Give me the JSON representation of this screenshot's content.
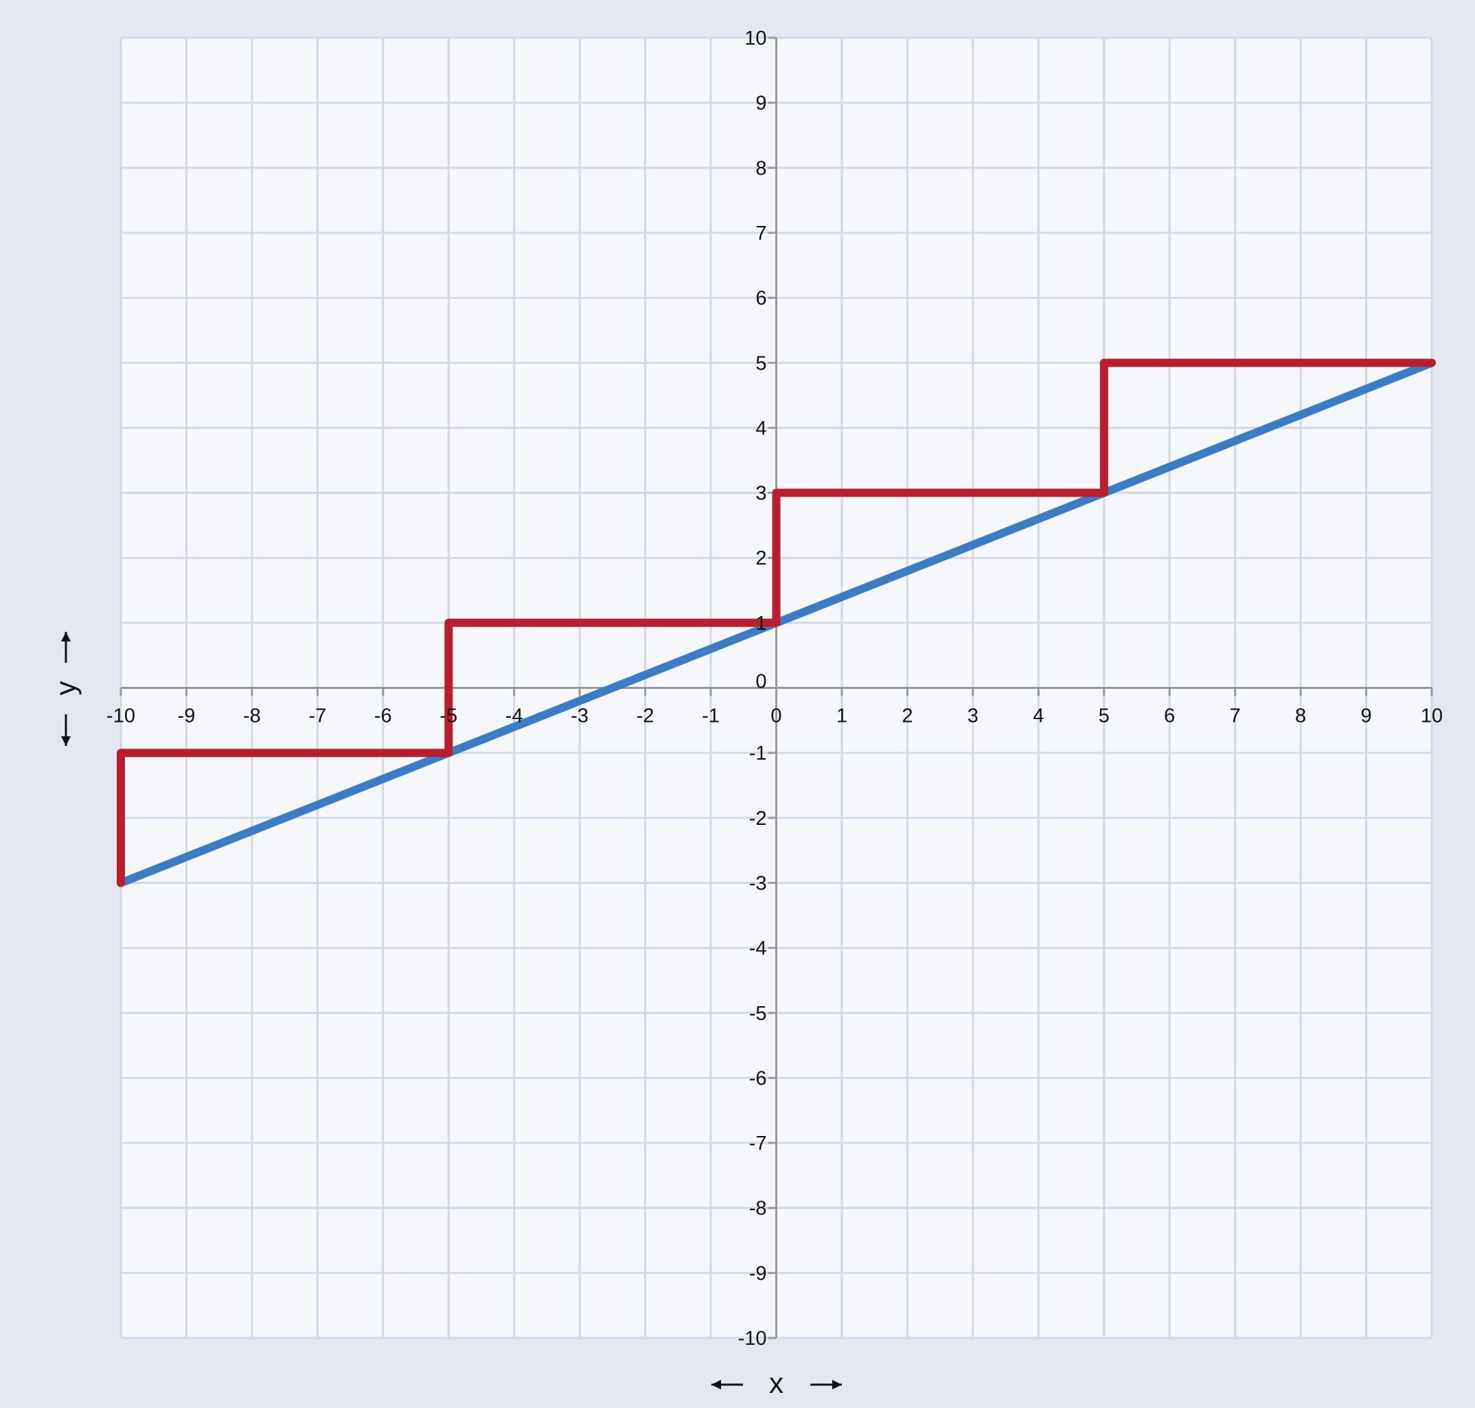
{
  "chart_data": {
    "type": "line",
    "xlabel": "x",
    "ylabel": "y",
    "xlim": [
      -10,
      10
    ],
    "ylim": [
      -10,
      10
    ],
    "x_ticks": [
      -10,
      -9,
      -8,
      -7,
      -6,
      -5,
      -4,
      -3,
      -2,
      -1,
      0,
      1,
      2,
      3,
      4,
      5,
      6,
      7,
      8,
      9,
      10
    ],
    "y_ticks": [
      -10,
      -9,
      -8,
      -7,
      -6,
      -5,
      -4,
      -3,
      -2,
      -1,
      0,
      1,
      2,
      3,
      4,
      5,
      6,
      7,
      8,
      9,
      10
    ],
    "grid": true,
    "axis_arrows": true,
    "series": [
      {
        "color": "#3b7cc4",
        "style": "straight line",
        "points": [
          [
            -10,
            -3
          ],
          [
            10,
            5
          ]
        ]
      },
      {
        "color": "#b81f2e",
        "style": "step",
        "points": [
          [
            -10,
            -3
          ],
          [
            -10,
            -1
          ],
          [
            -5,
            -1
          ],
          [
            -5,
            1
          ],
          [
            0,
            1
          ],
          [
            0,
            3
          ],
          [
            5,
            3
          ],
          [
            5,
            5
          ],
          [
            10,
            5
          ]
        ]
      }
    ]
  }
}
